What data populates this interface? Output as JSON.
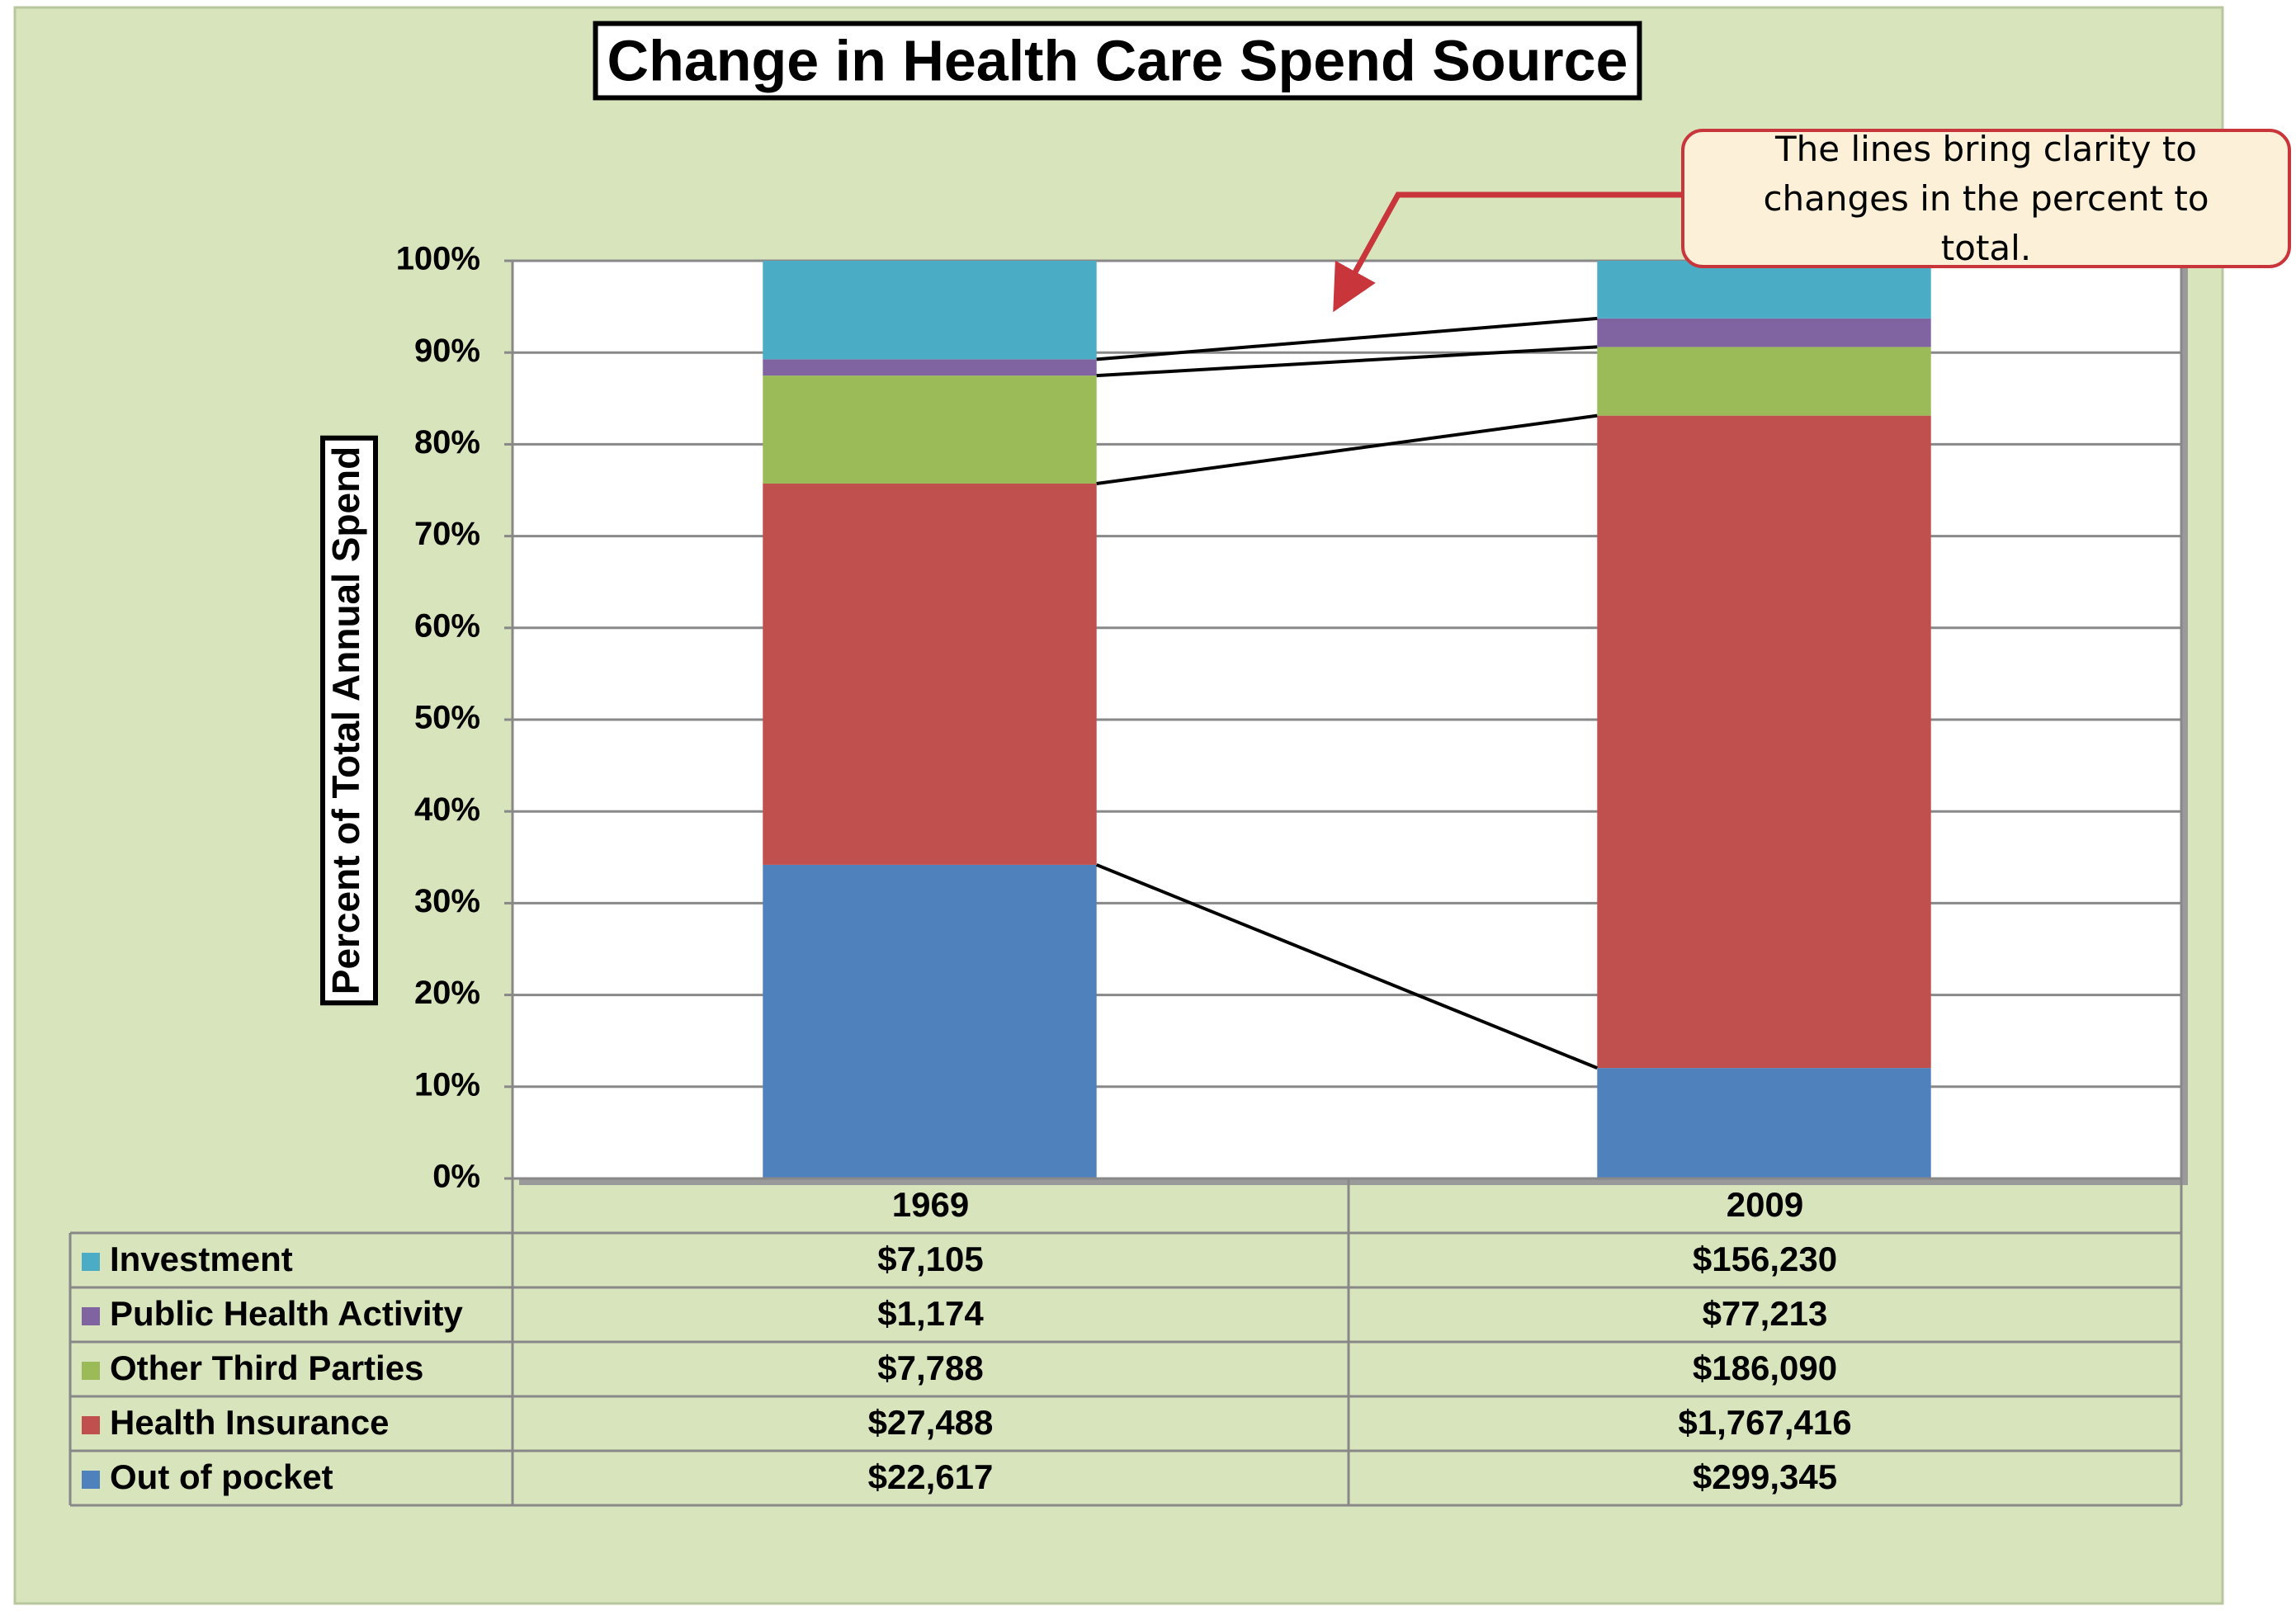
{
  "chart_data": {
    "type": "bar",
    "stack": "percent",
    "title": "Change in Health Care Spend Source",
    "y_label": "Percent of Total Annual Spend",
    "annotation": "The lines bring clarity to changes in the percent to total.",
    "categories": [
      "1969",
      "2009"
    ],
    "series": [
      {
        "name": "Investment",
        "color": "#4bacc6",
        "values": [
          7105,
          156230
        ],
        "value_labels": [
          "$7,105",
          "$156,230"
        ]
      },
      {
        "name": "Public Health Activity",
        "color": "#8064a2",
        "values": [
          1174,
          77213
        ],
        "value_labels": [
          "$1,174",
          "$77,213"
        ]
      },
      {
        "name": "Other Third Parties",
        "color": "#9bbb59",
        "values": [
          7788,
          186090
        ],
        "value_labels": [
          "$7,788",
          "$186,090"
        ]
      },
      {
        "name": "Health Insurance",
        "color": "#c0504d",
        "values": [
          27488,
          1767416
        ],
        "value_labels": [
          "$27,488",
          "$1,767,416"
        ]
      },
      {
        "name": "Out of pocket",
        "color": "#4f81bd",
        "values": [
          22617,
          299345
        ],
        "value_labels": [
          "$22,617",
          "$299,345"
        ]
      }
    ],
    "ylim": [
      0,
      100
    ],
    "yticks": [
      {
        "value": 0,
        "label": "0%"
      },
      {
        "value": 10,
        "label": "10%"
      },
      {
        "value": 20,
        "label": "20%"
      },
      {
        "value": 30,
        "label": "30%"
      },
      {
        "value": 40,
        "label": "40%"
      },
      {
        "value": 50,
        "label": "50%"
      },
      {
        "value": 60,
        "label": "60%"
      },
      {
        "value": 70,
        "label": "70%"
      },
      {
        "value": 80,
        "label": "80%"
      },
      {
        "value": 90,
        "label": "90%"
      },
      {
        "value": 100,
        "label": "100%"
      }
    ],
    "grid": true
  }
}
